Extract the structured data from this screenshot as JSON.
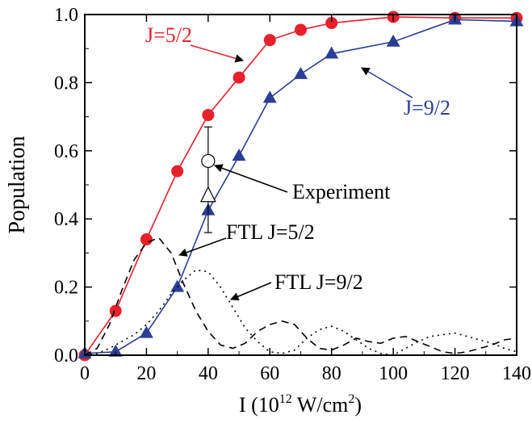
{
  "chart_data": {
    "type": "line",
    "xlabel": "I (10",
    "xlabel_sup": "12",
    "xlabel_mid": " W/cm",
    "xlabel_sup2": "2",
    "xlabel_end": ")",
    "ylabel": "Population",
    "xlim": [
      0,
      140
    ],
    "ylim": [
      0,
      1.0
    ],
    "xticks": [
      "0",
      "20",
      "40",
      "60",
      "80",
      "100",
      "120",
      "140"
    ],
    "yticks": [
      "0.0",
      "0.2",
      "0.4",
      "0.6",
      "0.8",
      "1.0"
    ],
    "grid": false,
    "series": [
      {
        "name": "J=5/2",
        "color": "#e8202a",
        "marker": "circle",
        "style": "solid",
        "x": [
          0,
          10,
          20,
          30,
          40,
          50,
          60,
          70,
          80,
          100,
          120,
          140
        ],
        "y": [
          0.0,
          0.13,
          0.34,
          0.54,
          0.705,
          0.815,
          0.925,
          0.955,
          0.975,
          0.993,
          0.99,
          0.99
        ]
      },
      {
        "name": "J=9/2",
        "color": "#2a3e96",
        "marker": "triangle",
        "style": "solid",
        "x": [
          0,
          10,
          20,
          30,
          40,
          50,
          60,
          70,
          80,
          100,
          120,
          140
        ],
        "y": [
          0.005,
          0.01,
          0.065,
          0.2,
          0.425,
          0.585,
          0.755,
          0.825,
          0.885,
          0.92,
          0.985,
          0.98
        ]
      },
      {
        "name": "FTL J=5/2",
        "color": "#000000",
        "style": "dashed",
        "x": [
          0,
          4,
          8,
          12,
          16,
          20,
          24,
          28,
          32,
          36,
          40,
          44,
          48,
          52,
          56,
          60,
          64,
          68,
          72,
          76,
          80,
          84,
          88,
          92,
          96,
          100,
          104,
          108,
          112,
          116,
          120,
          124,
          128,
          132,
          136,
          140
        ],
        "y": [
          0.0,
          0.02,
          0.09,
          0.19,
          0.28,
          0.33,
          0.345,
          0.3,
          0.21,
          0.13,
          0.07,
          0.03,
          0.02,
          0.035,
          0.07,
          0.09,
          0.1,
          0.09,
          0.05,
          0.02,
          0.015,
          0.03,
          0.05,
          0.04,
          0.035,
          0.05,
          0.055,
          0.04,
          0.025,
          0.01,
          0.005,
          0.01,
          0.02,
          0.03,
          0.045,
          0.05
        ]
      },
      {
        "name": "FTL J=9/2",
        "color": "#000000",
        "style": "dotted",
        "x": [
          0,
          4,
          8,
          12,
          16,
          20,
          24,
          28,
          32,
          36,
          40,
          44,
          48,
          52,
          56,
          60,
          64,
          68,
          72,
          76,
          80,
          84,
          88,
          92,
          96,
          100,
          104,
          108,
          112,
          116,
          120,
          124,
          128,
          132,
          136,
          140
        ],
        "y": [
          0.0,
          0.005,
          0.02,
          0.04,
          0.06,
          0.09,
          0.13,
          0.18,
          0.22,
          0.25,
          0.245,
          0.2,
          0.14,
          0.08,
          0.04,
          0.01,
          0.005,
          0.015,
          0.05,
          0.075,
          0.085,
          0.07,
          0.045,
          0.02,
          0.005,
          0.0,
          0.02,
          0.04,
          0.055,
          0.06,
          0.065,
          0.055,
          0.045,
          0.035,
          0.02,
          0.01
        ]
      }
    ],
    "experiment": {
      "label": "Experiment",
      "x": 40,
      "circle_y": 0.57,
      "triangle_y": 0.465,
      "err_high": 0.67,
      "err_low": 0.36
    },
    "annotations": [
      {
        "text": "J=5/2",
        "color": "#e8202a"
      },
      {
        "text": "J=9/2",
        "color": "#2a3e96"
      },
      {
        "text": "Experiment",
        "color": "#000000"
      },
      {
        "text": "FTL J=5/2",
        "color": "#000000"
      },
      {
        "text": "FTL J=9/2",
        "color": "#000000"
      }
    ]
  }
}
